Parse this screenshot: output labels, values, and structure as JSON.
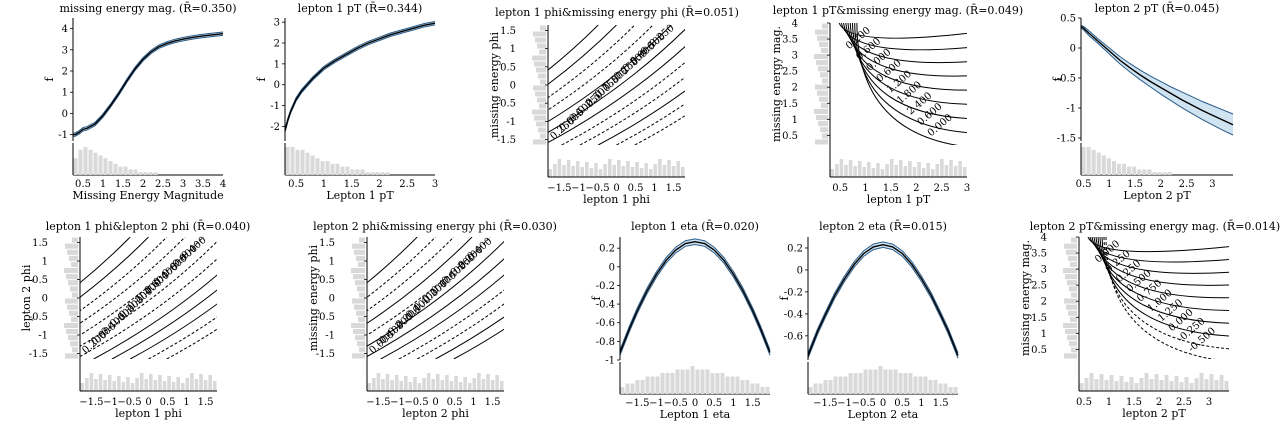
{
  "chart_data": [
    {
      "type": "line",
      "title": "missing energy mag. (R̄=0.350)",
      "xlabel": "Missing Energy Magnitude",
      "ylabel": "f",
      "xlim": [
        0.25,
        4
      ],
      "ylim": [
        -1.3,
        4.5
      ],
      "xticks": [
        "0.5",
        "1",
        "1.5",
        "2",
        "2.5",
        "3",
        "3.5",
        "4"
      ],
      "yticks": [
        "-1",
        "0",
        "1",
        "2",
        "3",
        "4"
      ],
      "x": [
        0.25,
        0.3,
        0.4,
        0.5,
        0.6,
        0.8,
        1.0,
        1.2,
        1.4,
        1.6,
        1.8,
        2.0,
        2.2,
        2.4,
        2.6,
        2.8,
        3.0,
        3.2,
        3.4,
        3.6,
        3.8,
        4.0
      ],
      "values": [
        -1.0,
        -1.0,
        -0.9,
        -0.75,
        -0.7,
        -0.5,
        -0.1,
        0.4,
        0.95,
        1.55,
        2.1,
        2.55,
        2.9,
        3.15,
        3.3,
        3.42,
        3.5,
        3.57,
        3.63,
        3.68,
        3.72,
        3.76
      ],
      "band_width": 0.08,
      "hist": [
        6,
        9,
        10,
        9,
        8,
        7,
        6,
        5,
        4,
        3,
        3,
        2,
        2,
        1,
        1,
        1,
        1,
        0,
        0,
        0,
        0,
        0,
        0,
        0,
        0,
        0,
        0,
        0,
        0,
        0
      ]
    },
    {
      "type": "line",
      "title": "lepton 1 pT (R̄=0.344)",
      "xlabel": "Lepton 1 pT",
      "ylabel": "f",
      "xlim": [
        0.3,
        3.0
      ],
      "ylim": [
        -2.7,
        3.2
      ],
      "xticks": [
        "0.5",
        "1",
        "1.5",
        "2",
        "2.5",
        "3"
      ],
      "yticks": [
        "-2",
        "-1",
        "0",
        "1",
        "2",
        "3"
      ],
      "x": [
        0.3,
        0.35,
        0.4,
        0.5,
        0.6,
        0.8,
        1.0,
        1.2,
        1.4,
        1.6,
        1.8,
        2.0,
        2.2,
        2.4,
        2.6,
        2.8,
        3.0
      ],
      "values": [
        -2.2,
        -1.7,
        -1.3,
        -0.7,
        -0.3,
        0.3,
        0.8,
        1.15,
        1.45,
        1.75,
        2.0,
        2.2,
        2.4,
        2.55,
        2.7,
        2.85,
        2.95
      ],
      "band_width": 0.08,
      "hist": [
        10,
        10,
        9,
        9,
        8,
        7,
        6,
        5,
        5,
        4,
        4,
        3,
        3,
        2,
        2,
        2,
        1,
        1,
        1,
        1,
        1,
        0,
        0,
        0,
        0,
        0,
        0,
        0,
        0,
        0
      ]
    },
    {
      "type": "contour",
      "title": "lepton 1 phi&missing energy phi (R̄=0.051)",
      "xlabel": "lepton 1 phi",
      "ylabel": "missing energy phi",
      "xlim": [
        -1.8,
        1.8
      ],
      "ylim": [
        -1.65,
        1.65
      ],
      "xticks": [
        "−1.5",
        "−1",
        "−0.5",
        "0",
        "0.5",
        "1",
        "1.5"
      ],
      "yticks": [
        "-1.5",
        "-1",
        "-0.5",
        "0",
        "0.5",
        "1",
        "1.5"
      ],
      "levels": [
        "0.750",
        "0.500",
        "0.250",
        "0.000",
        "-0.250",
        "-0.500"
      ],
      "contour_labels": [
        "0.250",
        "0.000",
        "-0.500",
        "-0.250",
        "0.500",
        "0.750",
        "0.500",
        "-0.250",
        "-0.500",
        "0.000",
        "-0.500",
        "-0.250"
      ]
    },
    {
      "type": "contour",
      "title": "lepton 1 pT&missing energy mag. (R̄=0.049)",
      "xlabel": "lepton 1 pT",
      "ylabel": "missing energy mag.",
      "xlim": [
        0.3,
        3.0
      ],
      "ylim": [
        0.2,
        4.0
      ],
      "xticks": [
        "0.5",
        "1",
        "1.5",
        "2",
        "2.5",
        "3"
      ],
      "yticks": [
        "0.5",
        "1",
        "1.5",
        "2",
        "2.5",
        "3",
        "3.5",
        "4"
      ],
      "contour_labels": [
        "0.200",
        "0.600",
        "0.000",
        "0.600",
        "1.200",
        "1.800",
        "2.400",
        "0.600",
        "0.000"
      ]
    },
    {
      "type": "line",
      "title": "lepton 2 pT (R̄=0.045)",
      "xlabel": "Lepton 2 pT",
      "ylabel": "f",
      "xlim": [
        0.45,
        3.4
      ],
      "ylim": [
        -1.55,
        0.5
      ],
      "xticks": [
        "0.5",
        "1",
        "1.5",
        "2",
        "2.5",
        "3"
      ],
      "yticks": [
        "-1.5",
        "-1",
        "-0.5",
        "0",
        "0.5"
      ],
      "x": [
        0.45,
        0.5,
        0.6,
        0.8,
        1.0,
        1.2,
        1.4,
        1.6,
        1.8,
        2.0,
        2.2,
        2.4,
        2.6,
        2.8,
        3.0,
        3.2,
        3.4
      ],
      "values": [
        0.36,
        0.33,
        0.25,
        0.1,
        -0.05,
        -0.2,
        -0.33,
        -0.45,
        -0.56,
        -0.66,
        -0.76,
        -0.86,
        -0.95,
        -1.04,
        -1.12,
        -1.2,
        -1.28
      ],
      "band_lower": [
        0.34,
        0.3,
        0.21,
        0.06,
        -0.1,
        -0.26,
        -0.4,
        -0.53,
        -0.65,
        -0.77,
        -0.88,
        -0.99,
        -1.09,
        -1.19,
        -1.28,
        -1.37,
        -1.45
      ],
      "band_upper": [
        0.38,
        0.36,
        0.29,
        0.14,
        0.0,
        -0.14,
        -0.26,
        -0.37,
        -0.47,
        -0.56,
        -0.65,
        -0.73,
        -0.81,
        -0.89,
        -0.96,
        -1.03,
        -1.1
      ],
      "hist": [
        10,
        10,
        9,
        8,
        7,
        6,
        5,
        4,
        4,
        3,
        3,
        2,
        2,
        2,
        1,
        1,
        1,
        1,
        0,
        0,
        0,
        0,
        0,
        0,
        0,
        0,
        0,
        0,
        0,
        0
      ]
    },
    {
      "type": "contour",
      "title": "lepton 1 phi&lepton 2 phi (R̄=0.040)",
      "xlabel": "lepton 1 phi",
      "ylabel": "lepton 2 phi",
      "xlim": [
        -1.8,
        1.8
      ],
      "ylim": [
        -1.65,
        1.65
      ],
      "xticks": [
        "−1.5",
        "−1",
        "−0.5",
        "0",
        "0.5",
        "1",
        "1.5"
      ],
      "yticks": [
        "-1.5",
        "-1",
        "-0.5",
        "0",
        "0.5",
        "1",
        "1.5"
      ],
      "contour_labels": [
        "0.200",
        "0.000",
        "-0.400",
        "-0.600",
        "-0.200",
        "-0.200",
        "-0.400",
        "0.600",
        "0.400",
        "0.600",
        "-0.000",
        "-0.400"
      ]
    },
    {
      "type": "contour",
      "title": "lepton 2 phi&missing energy phi (R̄=0.030)",
      "xlabel": "lepton 2 phi",
      "ylabel": "missing energy phi",
      "xlim": [
        -1.8,
        1.8
      ],
      "ylim": [
        -1.65,
        1.65
      ],
      "xticks": [
        "−1.5",
        "−1",
        "−0.5",
        "0",
        "0.5",
        "1",
        "1.5"
      ],
      "yticks": [
        "-1.5",
        "-1",
        "-0.5",
        "0",
        "0.5",
        "1",
        "1.5"
      ],
      "contour_labels": [
        "0.000",
        "-0.400",
        "-0.200",
        "0.200",
        "-0.400",
        "0.400",
        "0.200",
        "0.400",
        "-0.400",
        "-0.200",
        "0.200",
        "0.400"
      ]
    },
    {
      "type": "line",
      "title": "lepton 1 eta (R̄=0.020)",
      "xlabel": "Lepton 1 eta",
      "ylabel": "f",
      "xlim": [
        -1.95,
        1.95
      ],
      "ylim": [
        -1.0,
        0.32
      ],
      "xticks": [
        "−1.5",
        "−1",
        "−0.5",
        "0",
        "0.5",
        "1",
        "1.5"
      ],
      "yticks": [
        "-1",
        "-0.8",
        "-0.6",
        "-0.4",
        "-0.2",
        "0",
        "0.2"
      ],
      "x": [
        -1.95,
        -1.7,
        -1.5,
        -1.25,
        -1.0,
        -0.75,
        -0.5,
        -0.25,
        0.0,
        0.25,
        0.5,
        0.75,
        1.0,
        1.25,
        1.5,
        1.7,
        1.95
      ],
      "values": [
        -0.92,
        -0.66,
        -0.47,
        -0.26,
        -0.08,
        0.07,
        0.18,
        0.25,
        0.27,
        0.25,
        0.18,
        0.07,
        -0.08,
        -0.26,
        -0.47,
        -0.66,
        -0.92
      ],
      "band_width": 0.03,
      "hist": [
        2,
        3,
        3,
        4,
        4,
        5,
        5,
        5,
        6,
        6,
        6,
        7,
        7,
        7,
        8,
        7,
        7,
        7,
        6,
        6,
        6,
        5,
        5,
        5,
        4,
        4,
        3,
        3,
        2,
        2
      ]
    },
    {
      "type": "line",
      "title": "lepton 2 eta (R̄=0.015)",
      "xlabel": "Lepton 2 eta",
      "ylabel": "f",
      "xlim": [
        -1.95,
        1.95
      ],
      "ylim": [
        -0.82,
        0.3
      ],
      "xticks": [
        "−1.5",
        "−1",
        "−0.5",
        "0",
        "0.5",
        "1",
        "1.5"
      ],
      "yticks": [
        "-0.6",
        "-0.4",
        "-0.2",
        "0",
        "0.2"
      ],
      "x": [
        -1.95,
        -1.7,
        -1.5,
        -1.25,
        -1.0,
        -0.75,
        -0.5,
        -0.25,
        0.0,
        0.25,
        0.5,
        0.75,
        1.0,
        1.25,
        1.5,
        1.7,
        1.95
      ],
      "values": [
        -0.78,
        -0.56,
        -0.41,
        -0.23,
        -0.08,
        0.05,
        0.15,
        0.21,
        0.23,
        0.21,
        0.15,
        0.05,
        -0.08,
        -0.23,
        -0.41,
        -0.56,
        -0.78
      ],
      "band_width": 0.025,
      "hist": [
        2,
        3,
        3,
        4,
        4,
        5,
        5,
        5,
        6,
        6,
        6,
        7,
        7,
        7,
        8,
        7,
        7,
        7,
        6,
        6,
        6,
        5,
        5,
        5,
        4,
        4,
        3,
        3,
        2,
        2
      ]
    },
    {
      "type": "contour",
      "title": "lepton 2 pT&missing energy mag. (R̄=0.014)",
      "xlabel": "lepton 2 pT",
      "ylabel": "missing energy mag.",
      "xlim": [
        0.4,
        3.4
      ],
      "ylim": [
        0.2,
        4.0
      ],
      "xticks": [
        "0.5",
        "1",
        "1.5",
        "2",
        "2.5",
        "3"
      ],
      "yticks": [
        "0.5",
        "1",
        "1.5",
        "2",
        "2.5",
        "3",
        "3.5",
        "4"
      ],
      "contour_labels": [
        "0.000",
        "0.250",
        "0.250",
        "0.500",
        "0.750",
        "1.000",
        "1.250",
        "0.000",
        "-0.250",
        "-0.500"
      ]
    }
  ],
  "colors": {
    "band": "#cfe3f0",
    "band_edge": "#2a5d8a",
    "hist": "#d9d9d9",
    "line": "#000000"
  }
}
